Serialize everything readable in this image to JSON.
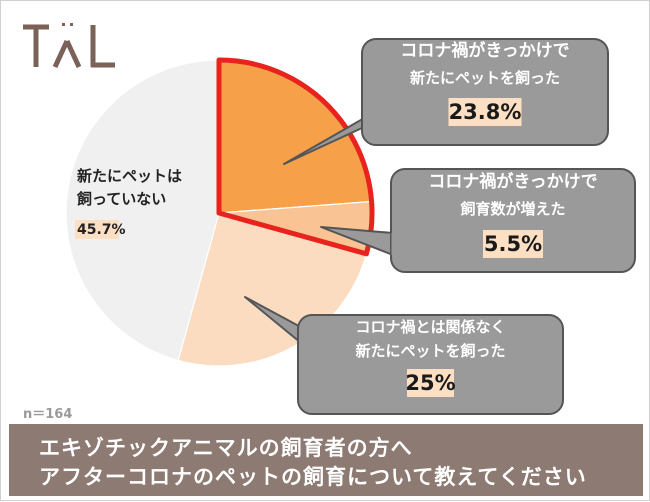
{
  "logo": {
    "text": "TAL",
    "color": "#7b6259"
  },
  "sample_size": "n＝164",
  "title": {
    "line1": "エキゾチックアニマルの飼育者の方へ",
    "line2": "アフターコロナのペットの飼育について教えてください"
  },
  "chart_data": {
    "type": "pie",
    "slices": [
      {
        "label_lines": [
          "コロナ禍がきっかけで",
          "新たにペットを飼った"
        ],
        "value": 23.8,
        "value_label": "23.8%",
        "color": "#f7a04a",
        "highlight": true
      },
      {
        "label_lines": [
          "コロナ禍がきっかけで",
          "飼育数が増えた"
        ],
        "value": 5.5,
        "value_label": "5.5%",
        "color": "#f9c393",
        "highlight": true
      },
      {
        "label_lines": [
          "コロナ禍とは関係なく",
          "新たにペットを飼った"
        ],
        "value": 25.0,
        "value_label": "25%",
        "color": "#fcdcc0",
        "highlight": false
      },
      {
        "label_lines": [
          "新たにペットは",
          "飼っていない"
        ],
        "value": 45.7,
        "value_label": "45.7%",
        "color": "#f0f0f0",
        "highlight": false
      }
    ],
    "highlight_color": "#e8231e",
    "callout_color": "#9a9a9a",
    "value_highlight_color": "#fde0c4"
  }
}
